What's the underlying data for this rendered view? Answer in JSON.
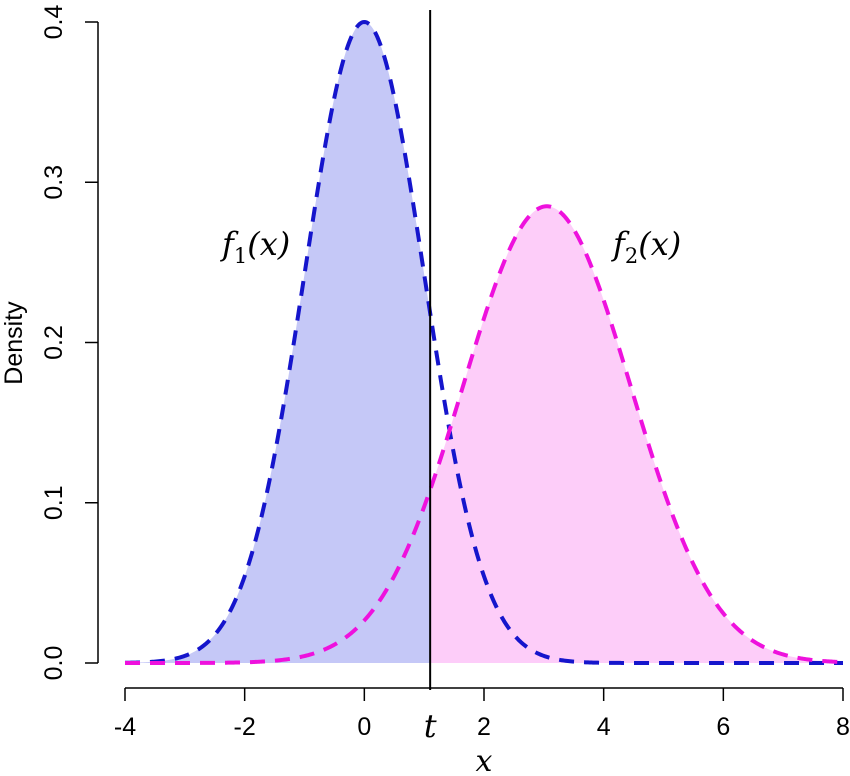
{
  "chart_data": {
    "type": "area",
    "title": "",
    "xlabel": "x",
    "ylabel": "Density",
    "xlim": [
      -4,
      8
    ],
    "ylim": [
      0,
      0.4
    ],
    "x_ticks": [
      -4,
      -2,
      0,
      2,
      4,
      6,
      8
    ],
    "x_tick_labels": [
      "-4",
      "-2",
      "0",
      "2",
      "4",
      "6",
      "8"
    ],
    "y_ticks": [
      0,
      0.1,
      0.2,
      0.3,
      0.4
    ],
    "y_tick_labels": [
      "0.0",
      "0.1",
      "0.2",
      "0.3",
      "0.4"
    ],
    "threshold": {
      "label": "t",
      "x": 1.1
    },
    "grid": false,
    "series": [
      {
        "name": "f1(x)",
        "label_base": "f",
        "label_sub": "1",
        "label_arg": "(x)",
        "distribution": "normal",
        "mean": 0,
        "sd": 1,
        "peak": 0.4,
        "line_color": "#1515cc",
        "fill_color": "#c5c8f7",
        "fill_region": "x <= t",
        "line_style": "dashed"
      },
      {
        "name": "f2(x)",
        "label_base": "f",
        "label_sub": "2",
        "label_arg": "(x)",
        "distribution": "normal",
        "mean": 3.05,
        "sd": 1.4,
        "peak": 0.285,
        "line_color": "#ee11dd",
        "fill_color": "#fdcdf9",
        "fill_region": "x >= t",
        "line_style": "dashed"
      }
    ]
  }
}
